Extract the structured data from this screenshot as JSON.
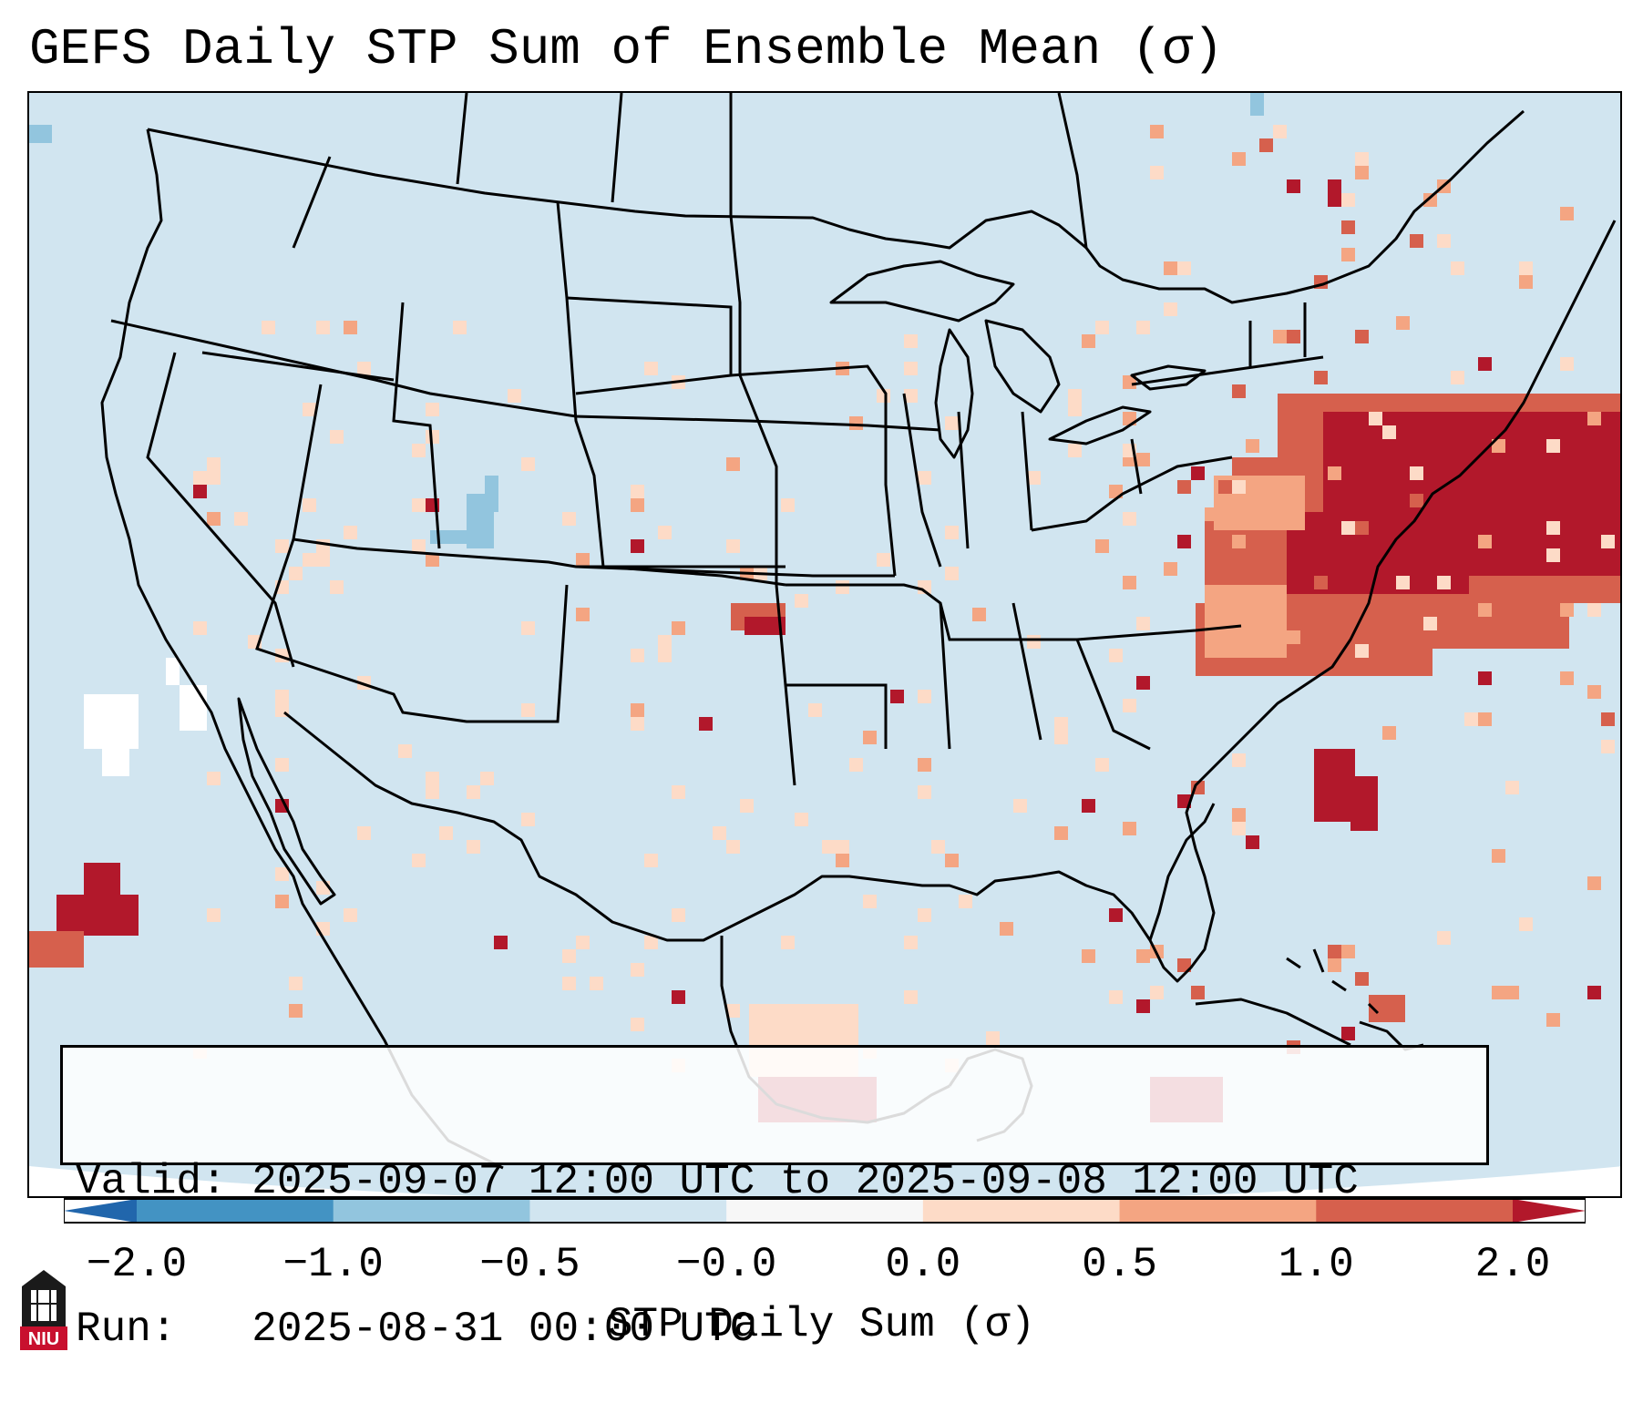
{
  "title": "GEFS Daily STP Sum of Ensemble Mean (σ)",
  "info_box": {
    "valid_label": "Valid:",
    "valid_value": "2025-09-07 12:00 UTC to 2025-09-08 12:00 UTC",
    "run_label": "Run:  ",
    "run_value": "2025-08-31 00:00 UTC"
  },
  "colorbar": {
    "label": "STP Daily Sum (σ)",
    "ticks": [
      "−2.0",
      "−1.0",
      "−0.5",
      "−0.0",
      "0.0",
      "0.5",
      "1.0",
      "2.0"
    ],
    "bin_colors": [
      "#4393c3",
      "#92c5de",
      "#d1e5f0",
      "#f7f7f7",
      "#fddbc7",
      "#f4a582",
      "#d6604d"
    ],
    "under_color": "#2166ac",
    "over_color": "#b2182b"
  },
  "map": {
    "background_color": "#d1e5f0",
    "anomaly_colors": {
      "neg_strong": "#4393c3",
      "neg_weak": "#92c5de",
      "near_zero": "#ffffff",
      "pos_weak": "#fddbc7",
      "pos_mid": "#f4a582",
      "pos_high": "#d6604d",
      "pos_extreme": "#b2182b"
    }
  },
  "logo": {
    "text": "NIU",
    "color": "#c8102e"
  }
}
